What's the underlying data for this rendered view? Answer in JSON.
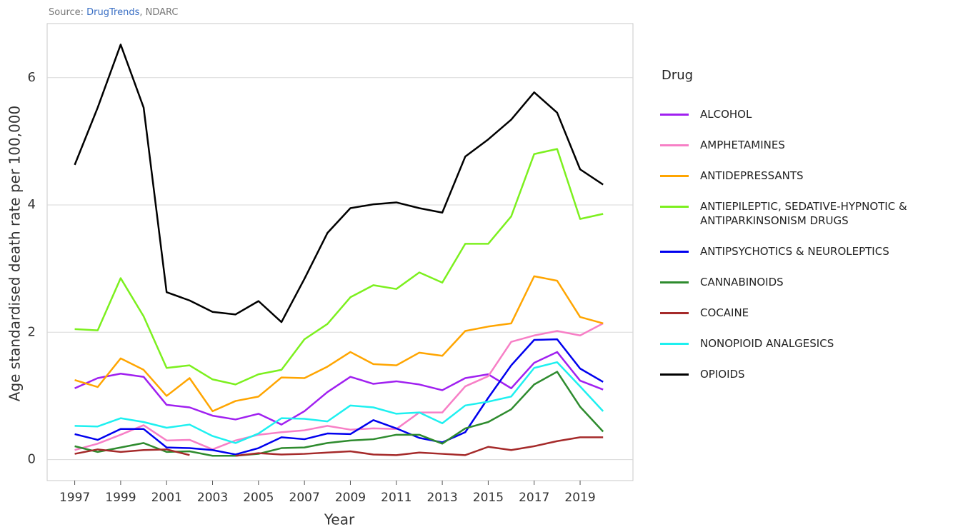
{
  "chart_data": {
    "type": "line",
    "source": {
      "prefix": "Source:",
      "link": "DrugTrends",
      "suffix": ", NDARC"
    },
    "x_label": "Year",
    "y_label": "Age standardised death rate per 100,000",
    "legend_title": "Drug",
    "legend": "right",
    "grid": true,
    "xlim": [
      1995.8,
      2021.3
    ],
    "ylim": [
      -0.33,
      6.85
    ],
    "xticks": [
      1997,
      1999,
      2001,
      2003,
      2005,
      2007,
      2009,
      2011,
      2013,
      2015,
      2017,
      2019
    ],
    "yticks": [
      0,
      2,
      4,
      6
    ],
    "x": [
      1997,
      1998,
      1999,
      2000,
      2001,
      2002,
      2003,
      2004,
      2005,
      2006,
      2007,
      2008,
      2009,
      2010,
      2011,
      2012,
      2013,
      2014,
      2015,
      2016,
      2017,
      2018,
      2019,
      2020
    ],
    "series": [
      {
        "name": "ALCOHOL",
        "color": "#a020f0",
        "values": [
          1.12,
          1.28,
          1.35,
          1.3,
          0.86,
          0.82,
          0.69,
          0.63,
          0.72,
          0.55,
          0.76,
          1.06,
          1.3,
          1.19,
          1.23,
          1.18,
          1.09,
          1.28,
          1.34,
          1.12,
          1.52,
          1.69,
          1.24,
          1.1
        ]
      },
      {
        "name": "AMPHETAMINES",
        "color": "#f77fc6",
        "values": [
          0.15,
          0.25,
          0.39,
          0.54,
          0.3,
          0.31,
          0.16,
          0.3,
          0.39,
          0.43,
          0.46,
          0.53,
          0.47,
          0.49,
          0.48,
          0.74,
          0.74,
          1.15,
          1.31,
          1.85,
          1.95,
          2.02,
          1.95,
          2.14
        ]
      },
      {
        "name": "ANTIDEPRESSANTS",
        "color": "#ffa500",
        "values": [
          1.25,
          1.14,
          1.59,
          1.41,
          1.0,
          1.28,
          0.76,
          0.92,
          0.99,
          1.29,
          1.28,
          1.46,
          1.69,
          1.5,
          1.48,
          1.68,
          1.63,
          2.02,
          2.09,
          2.14,
          2.88,
          2.81,
          2.24,
          2.14
        ]
      },
      {
        "name": "ANTIEPILEPTIC, SEDATIVE-HYPNOTIC & ANTIPARKINSONISM DRUGS",
        "color": "#7cf01e",
        "values": [
          2.05,
          2.03,
          2.85,
          2.25,
          1.44,
          1.48,
          1.26,
          1.18,
          1.34,
          1.41,
          1.89,
          2.13,
          2.55,
          2.74,
          2.68,
          2.94,
          2.78,
          3.39,
          3.39,
          3.82,
          4.8,
          4.88,
          3.78,
          3.86
        ]
      },
      {
        "name": "ANTIPSYCHOTICS & NEUROLEPTICS",
        "color": "#0000ee",
        "values": [
          0.4,
          0.31,
          0.48,
          0.48,
          0.19,
          0.18,
          0.15,
          0.08,
          0.18,
          0.35,
          0.32,
          0.41,
          0.4,
          0.62,
          0.49,
          0.34,
          0.27,
          0.43,
          0.97,
          1.48,
          1.88,
          1.89,
          1.43,
          1.22
        ]
      },
      {
        "name": "CANNABINOIDS",
        "color": "#2e8b2e",
        "values": [
          0.21,
          0.12,
          0.19,
          0.26,
          0.12,
          0.13,
          0.06,
          0.06,
          0.09,
          0.18,
          0.19,
          0.26,
          0.3,
          0.32,
          0.39,
          0.39,
          0.25,
          0.49,
          0.59,
          0.79,
          1.18,
          1.38,
          0.83,
          0.44
        ]
      },
      {
        "name": "COCAINE",
        "color": "#a52a2a",
        "values": [
          0.09,
          0.16,
          0.12,
          0.15,
          0.16,
          0.07,
          null,
          0.06,
          0.1,
          0.08,
          0.09,
          0.11,
          0.13,
          0.08,
          0.07,
          0.11,
          0.09,
          0.07,
          0.2,
          0.15,
          0.21,
          0.29,
          0.35,
          0.35
        ]
      },
      {
        "name": "NONOPIOID ANALGESICS",
        "color": "#1ef0f0",
        "values": [
          0.53,
          0.52,
          0.65,
          0.59,
          0.5,
          0.55,
          0.37,
          0.26,
          0.41,
          0.65,
          0.64,
          0.6,
          0.85,
          0.82,
          0.72,
          0.74,
          0.57,
          0.85,
          0.91,
          0.99,
          1.44,
          1.53,
          1.15,
          0.76
        ]
      },
      {
        "name": "OPIOIDS",
        "color": "#000000",
        "values": [
          4.63,
          5.53,
          6.52,
          5.53,
          2.63,
          2.5,
          2.32,
          2.28,
          2.49,
          2.16,
          2.84,
          3.56,
          3.95,
          4.01,
          4.04,
          3.95,
          3.88,
          4.76,
          5.03,
          5.34,
          5.77,
          5.45,
          4.56,
          4.32
        ]
      }
    ]
  }
}
